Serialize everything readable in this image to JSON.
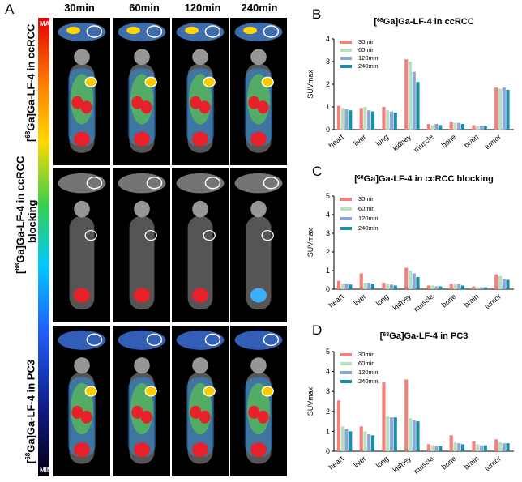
{
  "figure": {
    "panel_letters": [
      "A",
      "B",
      "C",
      "D"
    ],
    "time_points": [
      "30min",
      "60min",
      "120min",
      "240min"
    ],
    "row_labels": [
      "[68Ga]Ga-LF-4 in ccRCC",
      "[68Ga]Ga-LF-4 in ccRCC blocking",
      "[68Ga]Ga-LF-4 in PC3"
    ],
    "scale_max": "MAX",
    "scale_min": "MIN"
  },
  "colors": {
    "30min": "#f2817c",
    "60min": "#b8dfc2",
    "120min": "#8aa6d4",
    "240min": "#1b8fa6"
  },
  "chart_data": [
    {
      "type": "bar",
      "title": "[68Ga]Ga-LF-4 in ccRCC",
      "ylabel": "SUVmax",
      "xlabel": "",
      "ylim": [
        0,
        4
      ],
      "yticks": [
        0,
        1,
        2,
        3,
        4
      ],
      "categories": [
        "heart",
        "liver",
        "lung",
        "kidney",
        "muscle",
        "bone",
        "brain",
        "tumor"
      ],
      "legend_position": "top-left",
      "series": [
        {
          "name": "30min",
          "values": [
            1.05,
            0.95,
            1.0,
            3.1,
            0.25,
            0.35,
            0.2,
            1.85
          ]
        },
        {
          "name": "60min",
          "values": [
            0.95,
            1.0,
            0.85,
            3.0,
            0.2,
            0.3,
            0.15,
            1.8
          ]
        },
        {
          "name": "120min",
          "values": [
            0.9,
            0.85,
            0.8,
            2.55,
            0.25,
            0.3,
            0.15,
            1.85
          ]
        },
        {
          "name": "240min",
          "values": [
            0.85,
            0.8,
            0.75,
            2.1,
            0.2,
            0.25,
            0.15,
            1.75
          ]
        }
      ]
    },
    {
      "type": "bar",
      "title": "[68Ga]Ga-LF-4 in ccRCC blocking",
      "ylabel": "SUVmax",
      "xlabel": "",
      "ylim": [
        0,
        5
      ],
      "yticks": [
        0,
        1,
        2,
        3,
        4,
        5
      ],
      "categories": [
        "heart",
        "liver",
        "lung",
        "kidney",
        "muscle",
        "bone",
        "brain",
        "tumor"
      ],
      "legend_position": "top-left",
      "series": [
        {
          "name": "30min",
          "values": [
            0.45,
            0.85,
            0.35,
            1.15,
            0.2,
            0.3,
            0.15,
            0.8
          ]
        },
        {
          "name": "60min",
          "values": [
            0.3,
            0.35,
            0.3,
            1.0,
            0.2,
            0.25,
            0.1,
            0.7
          ]
        },
        {
          "name": "120min",
          "values": [
            0.3,
            0.35,
            0.25,
            0.85,
            0.15,
            0.3,
            0.1,
            0.55
          ]
        },
        {
          "name": "240min",
          "values": [
            0.25,
            0.3,
            0.2,
            0.65,
            0.15,
            0.2,
            0.1,
            0.5
          ]
        }
      ]
    },
    {
      "type": "bar",
      "title": "[68Ga]Ga-LF-4 in PC3",
      "ylabel": "SUVmax",
      "xlabel": "",
      "ylim": [
        0,
        5
      ],
      "yticks": [
        0,
        1,
        2,
        3,
        4,
        5
      ],
      "categories": [
        "heart",
        "liver",
        "lung",
        "kidney",
        "muscle",
        "bone",
        "brain",
        "tumor"
      ],
      "legend_position": "top-left",
      "series": [
        {
          "name": "30min",
          "values": [
            2.55,
            1.25,
            3.45,
            3.6,
            0.35,
            0.8,
            0.5,
            0.6
          ]
        },
        {
          "name": "60min",
          "values": [
            1.25,
            1.0,
            1.75,
            1.65,
            0.3,
            0.45,
            0.35,
            0.45
          ]
        },
        {
          "name": "120min",
          "values": [
            1.1,
            0.85,
            1.7,
            1.55,
            0.25,
            0.4,
            0.3,
            0.4
          ]
        },
        {
          "name": "240min",
          "values": [
            1.0,
            0.8,
            1.7,
            1.5,
            0.25,
            0.35,
            0.3,
            0.4
          ]
        }
      ]
    }
  ]
}
